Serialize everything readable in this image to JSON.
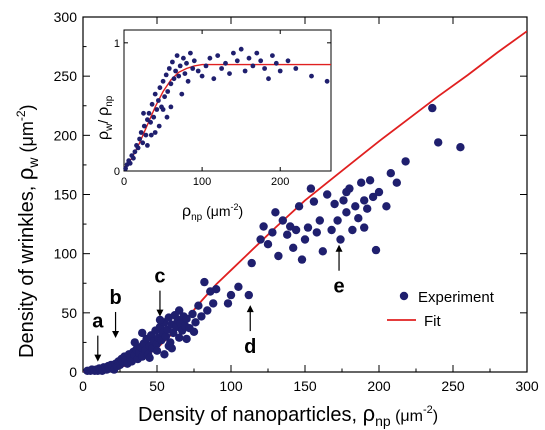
{
  "chart_data": [
    {
      "type": "scatter",
      "xlabel": "Density of nanoparticles, ρnp (μm⁻²)",
      "xlabel_parts": {
        "main": "Density of nanoparticles, ",
        "rho": "ρ",
        "sub": "np",
        "unit_open": " (μm",
        "sup": "-2",
        "unit_close": ")"
      },
      "ylabel": "Density of wrinkles, ρw (μm⁻²)",
      "ylabel_parts": {
        "main": "Density of wrinkles, ",
        "rho": "ρ",
        "sub": "w",
        "unit_open": "  (μm",
        "sup": "-2",
        "unit_close": ")"
      },
      "xlim": [
        0,
        300
      ],
      "ylim": [
        0,
        300
      ],
      "xticks": [
        "0",
        "50",
        "100",
        "150",
        "200",
        "250",
        "300"
      ],
      "yticks": [
        "0",
        "50",
        "100",
        "150",
        "200",
        "250",
        "300"
      ],
      "grid": false,
      "legend_position": "center-right",
      "series": [
        {
          "name": "Experiment",
          "kind": "points",
          "color": "#1f1f6e",
          "points": [
            [
              3,
              1
            ],
            [
              5,
              1
            ],
            [
              6,
              2
            ],
            [
              8,
              1
            ],
            [
              9,
              2
            ],
            [
              10,
              1
            ],
            [
              11,
              3
            ],
            [
              12,
              2
            ],
            [
              13,
              1
            ],
            [
              14,
              4
            ],
            [
              15,
              3
            ],
            [
              16,
              2
            ],
            [
              17,
              5
            ],
            [
              18,
              3
            ],
            [
              19,
              6
            ],
            [
              20,
              4
            ],
            [
              21,
              2
            ],
            [
              22,
              7
            ],
            [
              23,
              5
            ],
            [
              24,
              9
            ],
            [
              25,
              6
            ],
            [
              26,
              11
            ],
            [
              27,
              8
            ],
            [
              28,
              13
            ],
            [
              29,
              10
            ],
            [
              30,
              7
            ],
            [
              31,
              15
            ],
            [
              32,
              12
            ],
            [
              33,
              9
            ],
            [
              34,
              17
            ],
            [
              35,
              14
            ],
            [
              36,
              19
            ],
            [
              37,
              11
            ],
            [
              38,
              16
            ],
            [
              39,
              21
            ],
            [
              40,
              13
            ],
            [
              41,
              24
            ],
            [
              42,
              18
            ],
            [
              43,
              28
            ],
            [
              44,
              15
            ],
            [
              45,
              22
            ],
            [
              46,
              31
            ],
            [
              47,
              20
            ],
            [
              48,
              26
            ],
            [
              49,
              35
            ],
            [
              50,
              24
            ],
            [
              51,
              29
            ],
            [
              52,
              38
            ],
            [
              53,
              27
            ],
            [
              54,
              33
            ],
            [
              55,
              42
            ],
            [
              56,
              30
            ],
            [
              57,
              36
            ],
            [
              58,
              46
            ],
            [
              59,
              25
            ],
            [
              60,
              40
            ],
            [
              61,
              33
            ],
            [
              62,
              48
            ],
            [
              63,
              38
            ],
            [
              64,
              44
            ],
            [
              65,
              29
            ],
            [
              66,
              41
            ],
            [
              67,
              35
            ],
            [
              68,
              47
            ],
            [
              69,
              39
            ],
            [
              70,
              45
            ],
            [
              72,
              37
            ],
            [
              74,
              49
            ],
            [
              76,
              42
            ],
            [
              78,
              56
            ],
            [
              80,
              47
            ],
            [
              82,
              76
            ],
            [
              84,
              52
            ],
            [
              86,
              68
            ],
            [
              88,
              58
            ],
            [
              90,
              70
            ],
            [
              45,
              12
            ],
            [
              50,
              18
            ],
            [
              55,
              15
            ],
            [
              60,
              20
            ],
            [
              70,
              28
            ],
            [
              35,
              25
            ],
            [
              40,
              33
            ],
            [
              52,
              44
            ],
            [
              58,
              22
            ],
            [
              65,
              52
            ],
            [
              75,
              34
            ],
            [
              98,
              58
            ],
            [
              100,
              65
            ],
            [
              105,
              72
            ],
            [
              112,
              65
            ],
            [
              114,
              92
            ],
            [
              120,
              112
            ],
            [
              122,
              123
            ],
            [
              125,
              108
            ],
            [
              128,
              118
            ],
            [
              130,
              135
            ],
            [
              132,
              98
            ],
            [
              135,
              128
            ],
            [
              138,
              116
            ],
            [
              140,
              123
            ],
            [
              142,
              105
            ],
            [
              144,
              120
            ],
            [
              146,
              140
            ],
            [
              148,
              95
            ],
            [
              150,
              112
            ],
            [
              152,
              122
            ],
            [
              154,
              155
            ],
            [
              156,
              144
            ],
            [
              158,
              118
            ],
            [
              160,
              128
            ],
            [
              162,
              102
            ],
            [
              165,
              150
            ],
            [
              168,
              120
            ],
            [
              170,
              142
            ],
            [
              172,
              128
            ],
            [
              174,
              112
            ],
            [
              176,
              145
            ],
            [
              178,
              135
            ],
            [
              180,
              155
            ],
            [
              182,
              120
            ],
            [
              184,
              140
            ],
            [
              186,
              130
            ],
            [
              188,
              160
            ],
            [
              190,
              145
            ],
            [
              192,
              138
            ],
            [
              194,
              162
            ],
            [
              196,
              148
            ],
            [
              198,
              103
            ],
            [
              200,
              152
            ],
            [
              205,
              140
            ],
            [
              208,
              168
            ],
            [
              212,
              160
            ],
            [
              218,
              178
            ],
            [
              236,
              223
            ],
            [
              240,
              194
            ],
            [
              255,
              190
            ],
            [
              165,
              176
            ],
            [
              178,
              152
            ],
            [
              190,
              122
            ]
          ]
        },
        {
          "name": "Fit",
          "kind": "line",
          "color": "#e02020",
          "points": [
            [
              0,
              0
            ],
            [
              10,
              0.5
            ],
            [
              20,
              2
            ],
            [
              30,
              6
            ],
            [
              40,
              12
            ],
            [
              50,
              20
            ],
            [
              60,
              32
            ],
            [
              70,
              45
            ],
            [
              80,
              60
            ],
            [
              90,
              74
            ],
            [
              100,
              86
            ],
            [
              110,
              98
            ],
            [
              120,
              110
            ],
            [
              130,
              122
            ],
            [
              150,
              145
            ],
            [
              170,
              165
            ],
            [
              190,
              185
            ],
            [
              200,
              195
            ],
            [
              220,
              214
            ],
            [
              240,
              233
            ],
            [
              260,
              251
            ],
            [
              280,
              270
            ],
            [
              300,
              288
            ]
          ]
        }
      ],
      "annotations": [
        {
          "label": "a",
          "x": 10,
          "y": 2
        },
        {
          "label": "b",
          "x": 22,
          "y": 22
        },
        {
          "label": "c",
          "x": 52,
          "y": 40
        },
        {
          "label": "d",
          "x": 113,
          "y": 65
        },
        {
          "label": "e",
          "x": 173,
          "y": 116
        }
      ],
      "annotation_directions": {
        "a": "down",
        "b": "down",
        "c": "down",
        "d": "up",
        "e": "up"
      }
    },
    {
      "type": "scatter",
      "role": "inset",
      "xlabel": "ρnp (μm⁻²)",
      "xlabel_parts": {
        "rho": "ρ",
        "sub": "np",
        "unit_open": " (μm",
        "sup": "-2",
        "unit_close": ")"
      },
      "ylabel": "ρw / ρnp",
      "ylabel_parts": {
        "rho1": "ρ",
        "sub1": "w",
        "slash": "/ ",
        "rho2": "ρ",
        "sub2": "np"
      },
      "xlim": [
        0,
        265
      ],
      "ylim": [
        0,
        1.1
      ],
      "xticks": [
        "0",
        "100",
        "200"
      ],
      "yticks": [
        "0",
        "1"
      ],
      "series": [
        {
          "name": "Experiment",
          "kind": "points",
          "color": "#1f1f6e",
          "points": [
            [
              2,
              0.02
            ],
            [
              4,
              0.05
            ],
            [
              6,
              0.08
            ],
            [
              8,
              0.06
            ],
            [
              10,
              0.12
            ],
            [
              12,
              0.1
            ],
            [
              14,
              0.15
            ],
            [
              16,
              0.2
            ],
            [
              18,
              0.18
            ],
            [
              20,
              0.25
            ],
            [
              22,
              0.3
            ],
            [
              24,
              0.22
            ],
            [
              26,
              0.35
            ],
            [
              28,
              0.28
            ],
            [
              30,
              0.4
            ],
            [
              32,
              0.45
            ],
            [
              34,
              0.38
            ],
            [
              36,
              0.52
            ],
            [
              38,
              0.42
            ],
            [
              40,
              0.6
            ],
            [
              42,
              0.48
            ],
            [
              44,
              0.55
            ],
            [
              46,
              0.65
            ],
            [
              48,
              0.5
            ],
            [
              50,
              0.7
            ],
            [
              52,
              0.58
            ],
            [
              54,
              0.75
            ],
            [
              56,
              0.62
            ],
            [
              58,
              0.8
            ],
            [
              60,
              0.68
            ],
            [
              62,
              0.85
            ],
            [
              64,
              0.72
            ],
            [
              66,
              0.78
            ],
            [
              68,
              0.9
            ],
            [
              70,
              0.74
            ],
            [
              72,
              0.82
            ],
            [
              74,
              0.6
            ],
            [
              76,
              0.88
            ],
            [
              78,
              0.76
            ],
            [
              80,
              0.84
            ],
            [
              82,
              0.7
            ],
            [
              85,
              0.92
            ],
            [
              88,
              0.8
            ],
            [
              90,
              0.86
            ],
            [
              95,
              0.78
            ],
            [
              100,
              0.74
            ],
            [
              105,
              0.82
            ],
            [
              110,
              0.88
            ],
            [
              115,
              0.72
            ],
            [
              120,
              0.9
            ],
            [
              125,
              0.8
            ],
            [
              130,
              0.84
            ],
            [
              135,
              0.76
            ],
            [
              140,
              0.92
            ],
            [
              145,
              0.86
            ],
            [
              150,
              0.95
            ],
            [
              155,
              0.78
            ],
            [
              160,
              0.88
            ],
            [
              165,
              0.82
            ],
            [
              170,
              0.92
            ],
            [
              175,
              0.86
            ],
            [
              180,
              0.8
            ],
            [
              185,
              0.72
            ],
            [
              190,
              0.9
            ],
            [
              195,
              0.84
            ],
            [
              200,
              0.78
            ],
            [
              210,
              0.86
            ],
            [
              220,
              0.8
            ],
            [
              240,
              0.74
            ],
            [
              260,
              0.7
            ],
            [
              30,
              0.2
            ],
            [
              35,
              0.28
            ],
            [
              45,
              0.35
            ],
            [
              55,
              0.42
            ],
            [
              60,
              0.5
            ],
            [
              25,
              0.45
            ],
            [
              40,
              0.3
            ],
            [
              50,
              0.48
            ]
          ]
        },
        {
          "name": "Fit",
          "kind": "line",
          "color": "#e02020",
          "points": [
            [
              0,
              0.02
            ],
            [
              10,
              0.1
            ],
            [
              20,
              0.22
            ],
            [
              30,
              0.36
            ],
            [
              40,
              0.5
            ],
            [
              50,
              0.62
            ],
            [
              60,
              0.71
            ],
            [
              70,
              0.77
            ],
            [
              80,
              0.8
            ],
            [
              90,
              0.82
            ],
            [
              100,
              0.83
            ],
            [
              120,
              0.83
            ],
            [
              150,
              0.83
            ],
            [
              200,
              0.83
            ],
            [
              250,
              0.83
            ],
            [
              265,
              0.83
            ]
          ]
        }
      ]
    }
  ],
  "legend": {
    "experiment_label": "Experiment",
    "fit_label": "Fit"
  }
}
